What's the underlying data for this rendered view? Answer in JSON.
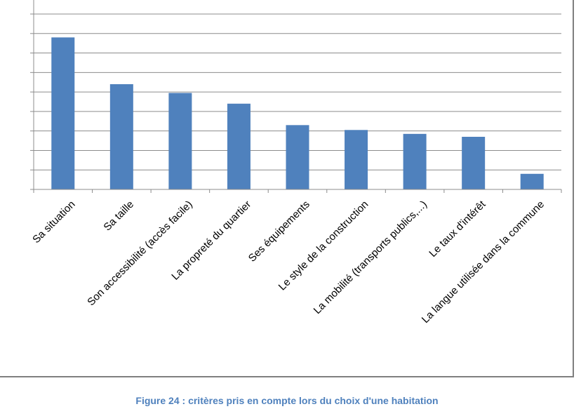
{
  "caption": "Figure 24 : critères pris en compte lors du choix d'une habitation",
  "chart_data": {
    "type": "bar",
    "categories": [
      "Sa situation",
      "Sa taille",
      "Son accessibilité (accès facile)",
      "La propreté du quartier",
      "Ses équipements",
      "Le style de la construction",
      "La mobilité (transports publics,...)",
      "Le taux d'intérêt",
      "La langue utilisée dans la commune"
    ],
    "values": [
      7.8,
      5.4,
      4.95,
      4.4,
      3.3,
      3.05,
      2.85,
      2.7,
      0.8
    ],
    "ylim": [
      0,
      9
    ],
    "grid": true,
    "legend": "none",
    "bar_color": "#4f81bd",
    "grid_color": "#8c8c8c"
  }
}
